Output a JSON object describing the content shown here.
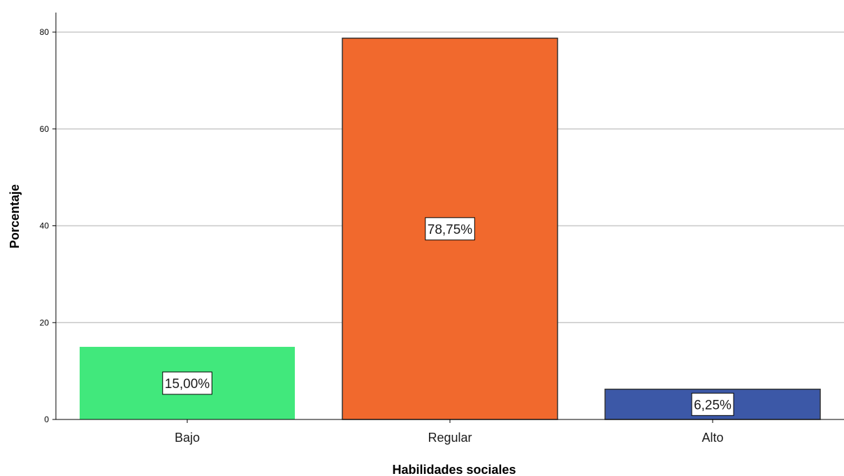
{
  "chart_data": {
    "type": "bar",
    "categories": [
      "Bajo",
      "Regular",
      "Alto"
    ],
    "values": [
      15.0,
      78.75,
      6.25
    ],
    "data_labels": [
      "15,00%",
      "78,75%",
      "6,25%"
    ],
    "colors": [
      "#41e87c",
      "#f1692d",
      "#3c58a7"
    ],
    "xlabel": "Habilidades sociales",
    "ylabel": "Porcentaje",
    "ylim": [
      0,
      80
    ],
    "yticks": [
      0,
      20,
      40,
      60,
      80
    ],
    "grid": true,
    "legend": "none"
  }
}
